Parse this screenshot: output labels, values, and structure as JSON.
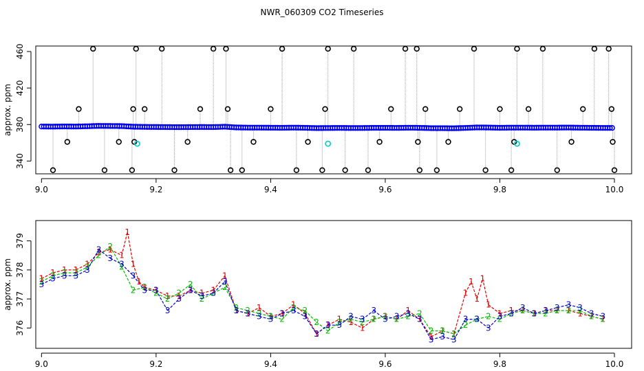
{
  "figure": {
    "title": "NWR_060309  CO2 Timeseries"
  },
  "chart_data": [
    {
      "type": "scatter",
      "title": "",
      "xlabel": "",
      "ylabel": "approx. ppm",
      "xlim": [
        8.99,
        10.03
      ],
      "ylim": [
        326,
        466
      ],
      "xticks": [
        9.0,
        9.2,
        9.4,
        9.6,
        9.8,
        10.0
      ],
      "xtick_labels": [
        "9.0",
        "9.2",
        "9.4",
        "9.6",
        "9.8",
        "10.0"
      ],
      "yticks": [
        340,
        380,
        420,
        460
      ],
      "ytick_labels": [
        "340",
        "380",
        "420",
        "460"
      ],
      "grid": false,
      "colors": {
        "points": "#0000ee",
        "outliers": "#000000",
        "flagged": "#00cccc",
        "spikes": "#999999"
      },
      "series": [
        {
          "x": [
            9.0,
            9.02,
            9.04,
            9.06,
            9.08,
            9.1,
            9.12,
            9.14,
            9.16,
            9.18,
            9.2,
            9.22,
            9.24,
            9.26,
            9.28,
            9.3,
            9.32,
            9.34,
            9.36,
            9.38,
            9.4,
            9.42,
            9.44,
            9.46,
            9.48,
            9.5,
            9.52,
            9.54,
            9.56,
            9.58,
            9.6,
            9.62,
            9.64,
            9.66,
            9.68,
            9.7,
            9.72,
            9.74,
            9.76,
            9.78,
            9.8,
            9.82,
            9.84,
            9.86,
            9.88,
            9.9,
            9.92,
            9.94,
            9.96,
            9.98
          ],
          "y": [
            377.8,
            377.7,
            377.9,
            377.8,
            378.1,
            378.5,
            378.4,
            378.3,
            377.6,
            377.4,
            377.3,
            377.2,
            377.1,
            377.2,
            377.3,
            377.2,
            377.6,
            376.8,
            376.6,
            376.6,
            376.5,
            376.4,
            376.6,
            376.4,
            376.1,
            376.2,
            376.3,
            376.2,
            376.2,
            376.4,
            376.4,
            376.3,
            376.5,
            376.4,
            376.0,
            376.0,
            375.9,
            376.3,
            376.8,
            376.7,
            376.4,
            376.6,
            376.6,
            376.5,
            376.6,
            376.6,
            376.7,
            376.5,
            376.4,
            376.3
          ]
        }
      ],
      "outliers": {
        "x": [
          9.02,
          9.045,
          9.065,
          9.09,
          9.11,
          9.135,
          9.158,
          9.16,
          9.162,
          9.165,
          9.18,
          9.21,
          9.232,
          9.255,
          9.277,
          9.3,
          9.322,
          9.325,
          9.33,
          9.35,
          9.37,
          9.4,
          9.42,
          9.445,
          9.465,
          9.49,
          9.495,
          9.5,
          9.53,
          9.545,
          9.57,
          9.59,
          9.61,
          9.635,
          9.655,
          9.657,
          9.66,
          9.67,
          9.69,
          9.71,
          9.73,
          9.755,
          9.775,
          9.8,
          9.82,
          9.825,
          9.83,
          9.85,
          9.875,
          9.9,
          9.925,
          9.945,
          9.965,
          9.99,
          9.995,
          9.997,
          10.0
        ],
        "y": [
          330,
          361,
          397,
          463,
          330,
          361,
          330,
          397,
          361,
          463,
          397,
          463,
          330,
          361,
          397,
          463,
          463,
          397,
          330,
          330,
          361,
          397,
          463,
          330,
          361,
          330,
          397,
          463,
          330,
          463,
          330,
          361,
          397,
          463,
          463,
          361,
          330,
          397,
          330,
          361,
          397,
          463,
          330,
          397,
          330,
          361,
          463,
          397,
          463,
          330,
          361,
          397,
          463,
          463,
          397,
          361,
          330
        ]
      },
      "flagged": {
        "x": [
          9.167,
          9.5,
          9.83
        ],
        "y": [
          359,
          359,
          359
        ]
      }
    },
    {
      "type": "line",
      "title": "",
      "xlabel": "",
      "ylabel": "approx. ppm",
      "xlim": [
        8.99,
        10.03
      ],
      "ylim": [
        375.3,
        379.7
      ],
      "xticks": [
        9.0,
        9.2,
        9.4,
        9.6,
        9.8,
        10.0
      ],
      "xtick_labels": [
        "9.0",
        "9.2",
        "9.4",
        "9.6",
        "9.8",
        "10.0"
      ],
      "yticks": [
        376,
        377,
        378,
        379
      ],
      "ytick_labels": [
        "376",
        "377",
        "378",
        "379"
      ],
      "grid": false,
      "marker_labels": [
        "1",
        "2",
        "3"
      ],
      "series": [
        {
          "marker": "1",
          "color": "#dd0000",
          "x": [
            9.0,
            9.02,
            9.04,
            9.06,
            9.08,
            9.1,
            9.12,
            9.14,
            9.15,
            9.16,
            9.17,
            9.18,
            9.2,
            9.22,
            9.24,
            9.26,
            9.28,
            9.3,
            9.32,
            9.34,
            9.36,
            9.38,
            9.4,
            9.42,
            9.44,
            9.46,
            9.48,
            9.5,
            9.52,
            9.54,
            9.56,
            9.58,
            9.6,
            9.62,
            9.64,
            9.66,
            9.68,
            9.7,
            9.72,
            9.74,
            9.75,
            9.76,
            9.77,
            9.78,
            9.8,
            9.82,
            9.84,
            9.86,
            9.88,
            9.9,
            9.92,
            9.94,
            9.96,
            9.98
          ],
          "values": [
            377.7,
            377.9,
            378.0,
            378.0,
            378.2,
            378.6,
            378.7,
            378.5,
            379.3,
            378.2,
            377.6,
            377.4,
            377.3,
            377.1,
            377.1,
            377.3,
            377.2,
            377.3,
            377.8,
            376.6,
            376.5,
            376.7,
            376.4,
            376.5,
            376.8,
            376.5,
            375.8,
            376.1,
            376.3,
            376.2,
            376.0,
            376.3,
            376.4,
            376.3,
            376.6,
            376.3,
            375.7,
            375.9,
            375.8,
            377.2,
            377.6,
            377.0,
            377.7,
            376.8,
            376.5,
            376.6,
            376.6,
            376.5,
            376.6,
            376.6,
            376.6,
            376.5,
            376.4,
            376.3
          ]
        },
        {
          "marker": "2",
          "color": "#00bb00",
          "x": [
            9.0,
            9.02,
            9.04,
            9.06,
            9.08,
            9.1,
            9.12,
            9.14,
            9.16,
            9.18,
            9.2,
            9.22,
            9.24,
            9.26,
            9.28,
            9.3,
            9.32,
            9.34,
            9.36,
            9.38,
            9.4,
            9.42,
            9.44,
            9.46,
            9.48,
            9.5,
            9.52,
            9.54,
            9.56,
            9.58,
            9.6,
            9.62,
            9.64,
            9.66,
            9.68,
            9.7,
            9.72,
            9.74,
            9.76,
            9.78,
            9.8,
            9.82,
            9.84,
            9.86,
            9.88,
            9.9,
            9.92,
            9.94,
            9.96,
            9.98
          ],
          "values": [
            377.6,
            377.8,
            377.9,
            377.9,
            378.1,
            378.5,
            378.8,
            378.1,
            377.3,
            377.4,
            377.2,
            377.0,
            377.2,
            377.5,
            377.0,
            377.2,
            377.4,
            376.7,
            376.6,
            376.5,
            376.4,
            376.3,
            376.7,
            376.6,
            376.2,
            375.9,
            376.2,
            376.3,
            376.2,
            376.3,
            376.4,
            376.3,
            376.4,
            376.5,
            375.9,
            375.9,
            375.8,
            376.1,
            376.3,
            376.4,
            376.3,
            376.5,
            376.6,
            376.5,
            376.5,
            376.6,
            376.6,
            376.6,
            376.4,
            376.3
          ]
        },
        {
          "marker": "3",
          "color": "#0000cc",
          "x": [
            9.0,
            9.02,
            9.04,
            9.06,
            9.08,
            9.1,
            9.12,
            9.14,
            9.16,
            9.18,
            9.2,
            9.22,
            9.24,
            9.26,
            9.28,
            9.3,
            9.32,
            9.34,
            9.36,
            9.38,
            9.4,
            9.42,
            9.44,
            9.46,
            9.48,
            9.5,
            9.52,
            9.54,
            9.56,
            9.58,
            9.6,
            9.62,
            9.64,
            9.66,
            9.68,
            9.7,
            9.72,
            9.74,
            9.76,
            9.78,
            9.8,
            9.82,
            9.84,
            9.86,
            9.88,
            9.9,
            9.92,
            9.94,
            9.96,
            9.98
          ],
          "values": [
            377.5,
            377.7,
            377.8,
            377.8,
            378.0,
            378.7,
            378.4,
            378.2,
            377.8,
            377.3,
            377.3,
            376.6,
            377.0,
            377.3,
            377.1,
            377.2,
            377.6,
            376.6,
            376.5,
            376.4,
            376.3,
            376.5,
            376.6,
            376.4,
            375.8,
            376.1,
            376.1,
            376.4,
            376.3,
            376.6,
            376.3,
            376.4,
            376.5,
            376.3,
            375.6,
            375.7,
            375.6,
            376.3,
            376.3,
            376.0,
            376.4,
            376.5,
            376.7,
            376.5,
            376.6,
            376.7,
            376.8,
            376.7,
            376.5,
            376.4
          ]
        }
      ]
    }
  ]
}
